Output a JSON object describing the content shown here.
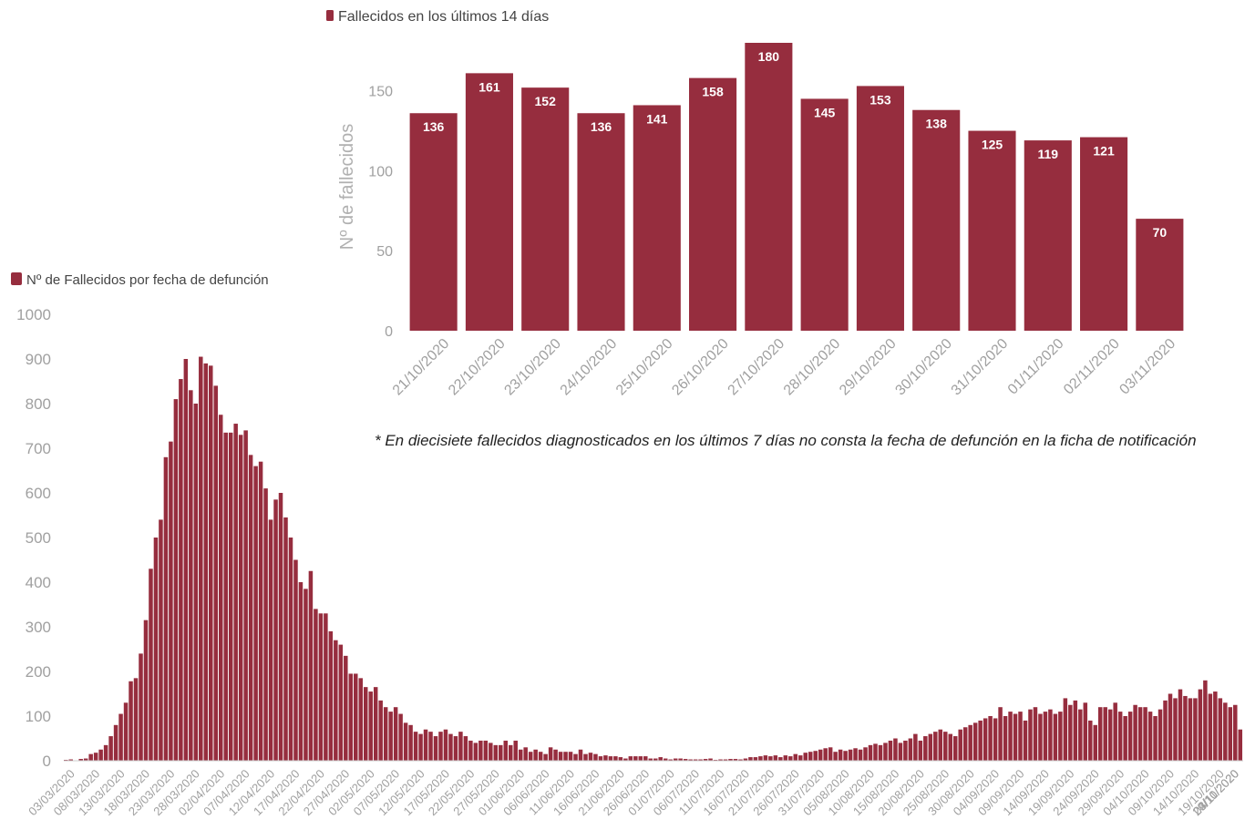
{
  "accent": "#962d3e",
  "footnote": "* En diecisiete fallecidos diagnosticados en los últimos 7 días no consta la fecha de defunción en la ficha de notificación",
  "chart_data": [
    {
      "type": "bar",
      "legend": "Nº de Fallecidos por fecha de defunción",
      "legend_position": "top-left",
      "grid": false,
      "ylim": [
        0,
        1000
      ],
      "yticks": [
        0,
        100,
        200,
        300,
        400,
        500,
        600,
        700,
        800,
        900,
        1000
      ],
      "start_date": "03/03/2020",
      "tick_labels": [
        "03/03/2020",
        "08/03/2020",
        "13/03/2020",
        "18/03/2020",
        "23/03/2020",
        "28/03/2020",
        "02/04/2020",
        "07/04/2020",
        "12/04/2020",
        "17/04/2020",
        "22/04/2020",
        "27/04/2020",
        "02/05/2020",
        "07/05/2020",
        "12/05/2020",
        "17/05/2020",
        "22/05/2020",
        "27/05/2020",
        "01/06/2020",
        "06/06/2020",
        "11/06/2020",
        "16/06/2020",
        "21/06/2020",
        "26/06/2020",
        "01/07/2020",
        "06/07/2020",
        "11/07/2020",
        "16/07/2020",
        "21/07/2020",
        "26/07/2020",
        "31/07/2020",
        "05/08/2020",
        "10/08/2020",
        "15/08/2020",
        "20/08/2020",
        "25/08/2020",
        "30/08/2020",
        "04/09/2020",
        "09/09/2020",
        "14/09/2020",
        "19/09/2020",
        "24/09/2020",
        "29/09/2020",
        "04/10/2020",
        "09/10/2020",
        "14/10/2020",
        "19/10/2020",
        "24/10/2020",
        "29/10/2020",
        "03/11/2020"
      ],
      "values": [
        2,
        3,
        1,
        4,
        5,
        15,
        18,
        25,
        35,
        55,
        80,
        105,
        130,
        178,
        185,
        240,
        315,
        430,
        500,
        540,
        680,
        715,
        810,
        855,
        900,
        830,
        800,
        905,
        890,
        885,
        840,
        775,
        735,
        735,
        755,
        730,
        740,
        685,
        660,
        670,
        610,
        540,
        585,
        600,
        545,
        500,
        450,
        400,
        385,
        425,
        340,
        330,
        330,
        290,
        270,
        260,
        235,
        195,
        195,
        185,
        165,
        155,
        165,
        135,
        120,
        110,
        120,
        105,
        85,
        80,
        65,
        60,
        70,
        65,
        55,
        65,
        70,
        60,
        55,
        65,
        55,
        45,
        40,
        45,
        45,
        40,
        35,
        35,
        45,
        35,
        45,
        25,
        30,
        20,
        25,
        20,
        15,
        30,
        25,
        20,
        20,
        20,
        15,
        25,
        15,
        18,
        15,
        10,
        12,
        10,
        10,
        8,
        5,
        10,
        10,
        10,
        10,
        5,
        5,
        8,
        5,
        3,
        5,
        5,
        4,
        3,
        3,
        3,
        4,
        5,
        2,
        3,
        3,
        4,
        4,
        3,
        5,
        8,
        8,
        10,
        12,
        10,
        12,
        8,
        12,
        10,
        15,
        12,
        18,
        20,
        22,
        25,
        28,
        30,
        20,
        25,
        22,
        25,
        28,
        25,
        30,
        35,
        38,
        35,
        40,
        45,
        50,
        40,
        45,
        50,
        60,
        45,
        55,
        60,
        65,
        70,
        65,
        60,
        55,
        70,
        75,
        80,
        85,
        90,
        95,
        100,
        95,
        120,
        100,
        110,
        105,
        110,
        90,
        115,
        120,
        105,
        110,
        115,
        105,
        110,
        140,
        125,
        135,
        115,
        130,
        90,
        80,
        120,
        120,
        115,
        130,
        110,
        100,
        110,
        125,
        120,
        120,
        110,
        100,
        115,
        135,
        150,
        140,
        160,
        145,
        140,
        140,
        160,
        180,
        150,
        155,
        140,
        130,
        120,
        125,
        70
      ]
    },
    {
      "type": "bar",
      "legend": "Fallecidos en los últimos 14 días",
      "legend_position": "top-left",
      "ylabel": "Nº de fallecidos",
      "grid": false,
      "ylim": [
        0,
        180
      ],
      "yticks": [
        0,
        50,
        100,
        150
      ],
      "categories": [
        "21/10/2020",
        "22/10/2020",
        "23/10/2020",
        "24/10/2020",
        "25/10/2020",
        "26/10/2020",
        "27/10/2020",
        "28/10/2020",
        "29/10/2020",
        "30/10/2020",
        "31/10/2020",
        "01/11/2020",
        "02/11/2020",
        "03/11/2020"
      ],
      "values": [
        136,
        161,
        152,
        136,
        141,
        158,
        180,
        145,
        153,
        138,
        125,
        119,
        121,
        70
      ]
    }
  ]
}
